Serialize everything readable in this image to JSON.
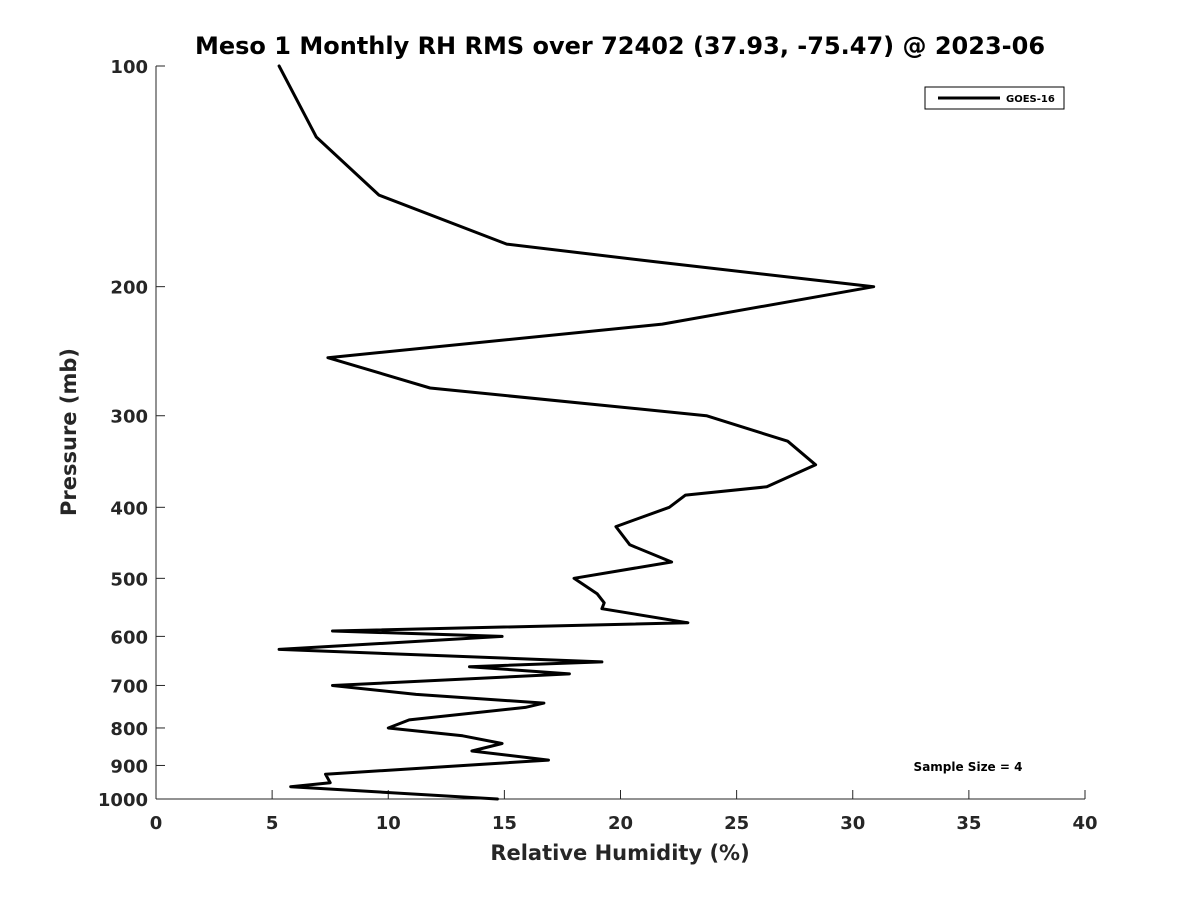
{
  "chart_data": {
    "type": "line",
    "title": "Meso 1 Monthly RH RMS over 72402 (37.93, -75.47) @ 2023-06",
    "xlabel": "Relative Humidity (%)",
    "ylabel": "Pressure (mb)",
    "xlim": [
      0,
      40
    ],
    "ylim": [
      100,
      1000
    ],
    "y_scale": "log",
    "y_reversed": true,
    "x_ticks": [
      "0",
      "5",
      "10",
      "15",
      "20",
      "25",
      "30",
      "35",
      "40"
    ],
    "y_ticks": [
      "100",
      "200",
      "300",
      "400",
      "500",
      "600",
      "700",
      "800",
      "900",
      "1000"
    ],
    "grid": false,
    "legend_position": "top-right",
    "series": [
      {
        "name": "GOES-16",
        "color": "#000000",
        "points": [
          [
            5.3,
            100
          ],
          [
            6.9,
            125
          ],
          [
            9.6,
            150
          ],
          [
            15.1,
            175
          ],
          [
            21.5,
            185
          ],
          [
            30.9,
            200
          ],
          [
            21.8,
            225
          ],
          [
            7.4,
            250
          ],
          [
            11.8,
            275
          ],
          [
            23.7,
            300
          ],
          [
            27.2,
            325
          ],
          [
            28.4,
            350
          ],
          [
            26.3,
            375
          ],
          [
            22.8,
            385
          ],
          [
            22.1,
            400
          ],
          [
            19.8,
            425
          ],
          [
            20.4,
            450
          ],
          [
            22.2,
            475
          ],
          [
            18.0,
            500
          ],
          [
            19.0,
            525
          ],
          [
            19.3,
            540
          ],
          [
            19.2,
            550
          ],
          [
            22.9,
            575
          ],
          [
            7.6,
            590
          ],
          [
            14.9,
            600
          ],
          [
            5.3,
            625
          ],
          [
            19.2,
            650
          ],
          [
            13.5,
            660
          ],
          [
            17.8,
            675
          ],
          [
            7.6,
            700
          ],
          [
            11.2,
            720
          ],
          [
            16.7,
            740
          ],
          [
            15.9,
            750
          ],
          [
            10.9,
            780
          ],
          [
            10.0,
            800
          ],
          [
            13.2,
            820
          ],
          [
            14.9,
            840
          ],
          [
            13.6,
            860
          ],
          [
            16.9,
            885
          ],
          [
            7.3,
            925
          ],
          [
            7.5,
            950
          ],
          [
            5.8,
            962
          ],
          [
            14.7,
            1000
          ]
        ]
      }
    ],
    "annotations": [
      {
        "text": "Sample Size = 4",
        "position": "bottom-right"
      }
    ]
  }
}
